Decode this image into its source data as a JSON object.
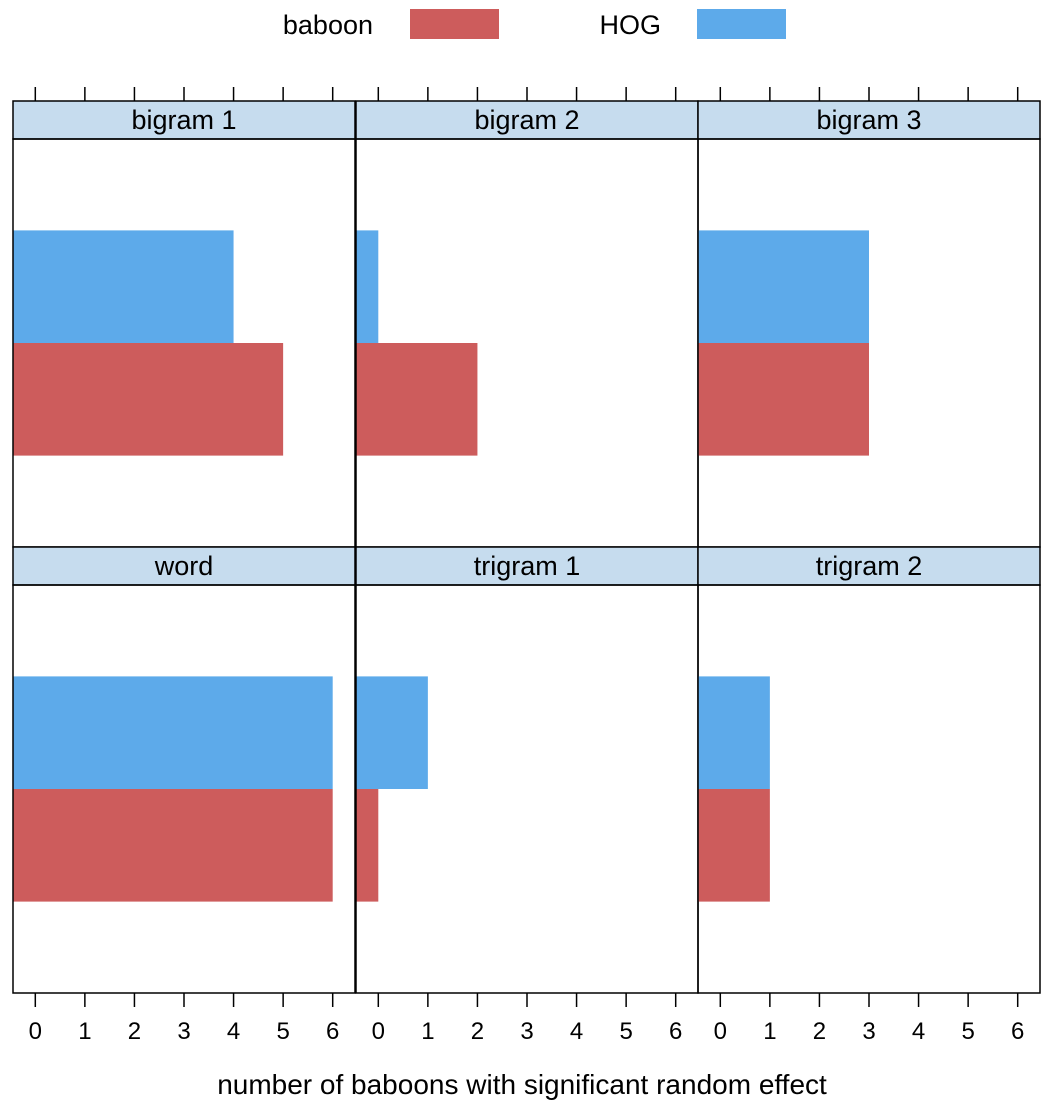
{
  "chart_data": {
    "type": "bar",
    "orientation": "horizontal",
    "xlabel": "number of baboons with significant random effect",
    "xlim": [
      -0.45,
      6.45
    ],
    "xticks": [
      "0",
      "1",
      "2",
      "3",
      "4",
      "5",
      "6"
    ],
    "legend": {
      "placement": "top",
      "entries": [
        {
          "name": "baboon",
          "color": "#CD5C5C"
        },
        {
          "name": "HOG",
          "color": "#5DAAEA"
        }
      ]
    },
    "strip_color": "#C6DCEE",
    "panels": [
      {
        "title": "bigram 1",
        "series": [
          {
            "name": "baboon",
            "value": 5
          },
          {
            "name": "HOG",
            "value": 4
          }
        ]
      },
      {
        "title": "bigram 2",
        "series": [
          {
            "name": "baboon",
            "value": 2
          },
          {
            "name": "HOG",
            "value": 0
          }
        ]
      },
      {
        "title": "bigram 3",
        "series": [
          {
            "name": "baboon",
            "value": 3
          },
          {
            "name": "HOG",
            "value": 3
          }
        ]
      },
      {
        "title": "word",
        "series": [
          {
            "name": "baboon",
            "value": 6
          },
          {
            "name": "HOG",
            "value": 6
          }
        ]
      },
      {
        "title": "trigram 1",
        "series": [
          {
            "name": "baboon",
            "value": 0
          },
          {
            "name": "HOG",
            "value": 1
          }
        ]
      },
      {
        "title": "trigram 2",
        "series": [
          {
            "name": "baboon",
            "value": 1
          },
          {
            "name": "HOG",
            "value": 1
          }
        ]
      }
    ]
  }
}
